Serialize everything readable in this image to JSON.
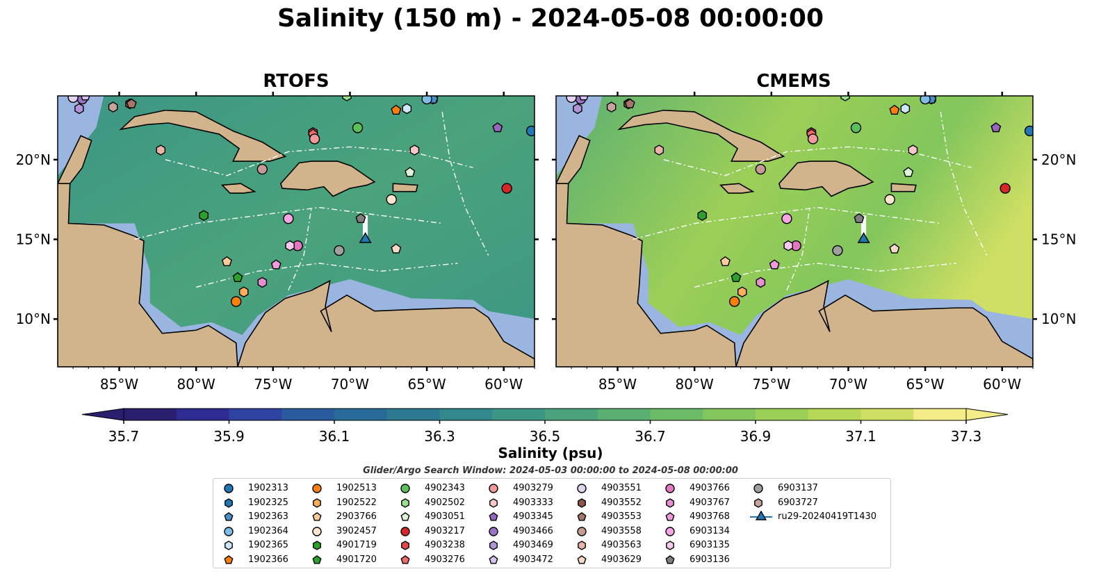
{
  "title": "Salinity (150 m) - 2024-05-08 00:00:00",
  "panels": [
    {
      "title": "RTOFS"
    },
    {
      "title": "CMEMS"
    }
  ],
  "x_ticks": [
    "85°W",
    "80°W",
    "75°W",
    "70°W",
    "65°W",
    "60°W"
  ],
  "y_ticks": [
    "20°N",
    "15°N",
    "10°N"
  ],
  "map_extent": {
    "lon": [
      -89,
      -58
    ],
    "lat": [
      7,
      24
    ]
  },
  "colorbar": {
    "label": "Salinity (psu)",
    "ticks": [
      "35.7",
      "35.9",
      "36.1",
      "36.3",
      "36.5",
      "36.7",
      "36.9",
      "37.1",
      "37.3"
    ],
    "range": [
      35.7,
      37.3
    ],
    "colors": [
      "#2a1f6e",
      "#2e2b93",
      "#2e43a0",
      "#2a5a9e",
      "#286b98",
      "#2b7a92",
      "#32898b",
      "#3c9684",
      "#4aa37b",
      "#5aaf72",
      "#6bbb67",
      "#82c65c",
      "#9ccf57",
      "#b6d757",
      "#cfdf64",
      "#f3ec88"
    ]
  },
  "colors": {
    "land": "#d2b48c",
    "shelf": "#9ab6e0",
    "deep_pacific": "#261b62",
    "glider_track": "#ffffff"
  },
  "search_window": "Glider/Argo Search Window: 2024-05-03 00:00:00 to 2024-05-08 00:00:00",
  "floats": [
    {
      "id": "1902313",
      "marker": "circle",
      "color": "#1f77b4",
      "lon": -58.2,
      "lat": 21.8
    },
    {
      "id": "1902325",
      "marker": "hexagon",
      "color": "#1f77b4",
      "lon": -64.6,
      "lat": 23.8
    },
    {
      "id": "1902363",
      "marker": "pentagon",
      "color": "#4a90c8",
      "lon": -64.6,
      "lat": 23.8
    },
    {
      "id": "1902364",
      "marker": "circle",
      "color": "#7fbde8",
      "lon": -65.0,
      "lat": 23.8
    },
    {
      "id": "1902365",
      "marker": "hexagon",
      "color": "#cde6f8",
      "lon": -66.3,
      "lat": 23.2
    },
    {
      "id": "1902366",
      "marker": "pentagon",
      "color": "#ff7f0e",
      "lon": -67.0,
      "lat": 23.1
    },
    {
      "id": "1902513",
      "marker": "circle",
      "color": "#ff7f0e",
      "lon": -77.4,
      "lat": 11.1
    },
    {
      "id": "1902522",
      "marker": "hexagon",
      "color": "#ffae5c",
      "lon": -76.9,
      "lat": 11.7
    },
    {
      "id": "2903766",
      "marker": "pentagon",
      "color": "#ffcc99",
      "lon": -78.0,
      "lat": 13.6
    },
    {
      "id": "3902457",
      "marker": "circle",
      "color": "#ffe6cc",
      "lon": -67.3,
      "lat": 17.5
    },
    {
      "id": "4901719",
      "marker": "hexagon",
      "color": "#2ca02c",
      "lon": -79.5,
      "lat": 16.5
    },
    {
      "id": "4901720",
      "marker": "pentagon",
      "color": "#2ca02c",
      "lon": -77.3,
      "lat": 12.6
    },
    {
      "id": "4902343",
      "marker": "circle",
      "color": "#5cbf5c",
      "lon": -69.5,
      "lat": 22.0
    },
    {
      "id": "4902502",
      "marker": "hexagon",
      "color": "#98df8a",
      "lon": -70.2,
      "lat": 24.0
    },
    {
      "id": "4903051",
      "marker": "pentagon",
      "color": "#ddf5d6",
      "lon": -66.1,
      "lat": 19.2
    },
    {
      "id": "4903217",
      "marker": "circle",
      "color": "#d62728",
      "lon": -59.8,
      "lat": 18.2
    },
    {
      "id": "4903238",
      "marker": "hexagon",
      "color": "#e34a4a",
      "lon": -72.4,
      "lat": 21.7
    },
    {
      "id": "4903276",
      "marker": "pentagon",
      "color": "#ef6b6b",
      "lon": -72.4,
      "lat": 21.6
    },
    {
      "id": "4903279",
      "marker": "circle",
      "color": "#f29a9a",
      "lon": -72.3,
      "lat": 21.3
    },
    {
      "id": "4903333",
      "marker": "hexagon",
      "color": "#f7c6c6",
      "lon": -65.8,
      "lat": 20.6
    },
    {
      "id": "4903345",
      "marker": "pentagon",
      "color": "#9467bd",
      "lon": -60.4,
      "lat": 22.0
    },
    {
      "id": "4903466",
      "marker": "circle",
      "color": "#9a73c4",
      "lon": -87.4,
      "lat": 23.8
    },
    {
      "id": "4903469",
      "marker": "hexagon",
      "color": "#b294d8",
      "lon": -87.6,
      "lat": 23.2
    },
    {
      "id": "4903472",
      "marker": "pentagon",
      "color": "#d6c4ef",
      "lon": -87.2,
      "lat": 24.0
    },
    {
      "id": "4903551",
      "marker": "circle",
      "color": "#e2d4f0",
      "lon": -88.0,
      "lat": 23.9
    },
    {
      "id": "4903552",
      "marker": "hexagon",
      "color": "#8c564b",
      "lon": -84.3,
      "lat": 23.5
    },
    {
      "id": "4903553",
      "marker": "pentagon",
      "color": "#a8756a",
      "lon": -84.2,
      "lat": 23.5
    },
    {
      "id": "4903558",
      "marker": "circle",
      "color": "#c49c94",
      "lon": -75.7,
      "lat": 19.4
    },
    {
      "id": "4903563",
      "marker": "hexagon",
      "color": "#e8b4a8",
      "lon": -82.3,
      "lat": 20.6
    },
    {
      "id": "4903629",
      "marker": "pentagon",
      "color": "#f7d9c8",
      "lon": -67.0,
      "lat": 14.4
    },
    {
      "id": "4903766",
      "marker": "circle",
      "color": "#e377c2",
      "lon": -73.4,
      "lat": 14.6
    },
    {
      "id": "4903767",
      "marker": "hexagon",
      "color": "#e68fd0",
      "lon": -75.7,
      "lat": 12.3
    },
    {
      "id": "4903768",
      "marker": "pentagon",
      "color": "#f09bdc",
      "lon": -74.8,
      "lat": 13.4
    },
    {
      "id": "6903134",
      "marker": "circle",
      "color": "#f5a6e0",
      "lon": -74.0,
      "lat": 16.3
    },
    {
      "id": "6903135",
      "marker": "hexagon",
      "color": "#f9c8ee",
      "lon": -73.9,
      "lat": 14.6
    },
    {
      "id": "6903136",
      "marker": "pentagon",
      "color": "#7f7f7f",
      "lon": -69.3,
      "lat": 16.3
    },
    {
      "id": "6903137",
      "marker": "circle",
      "color": "#a0a0a0",
      "lon": -70.7,
      "lat": 14.3
    },
    {
      "id": "6903727",
      "marker": "hexagon",
      "color": "#c7a59a",
      "lon": -85.4,
      "lat": 23.3
    }
  ],
  "glider": {
    "id": "ru29-20240419T1430",
    "marker": "triangle",
    "color": "#1f77b4",
    "lon": -69.0,
    "lat": 15.0,
    "track": [
      [
        -69.0,
        16.5
      ],
      [
        -69.0,
        15.2
      ]
    ]
  }
}
